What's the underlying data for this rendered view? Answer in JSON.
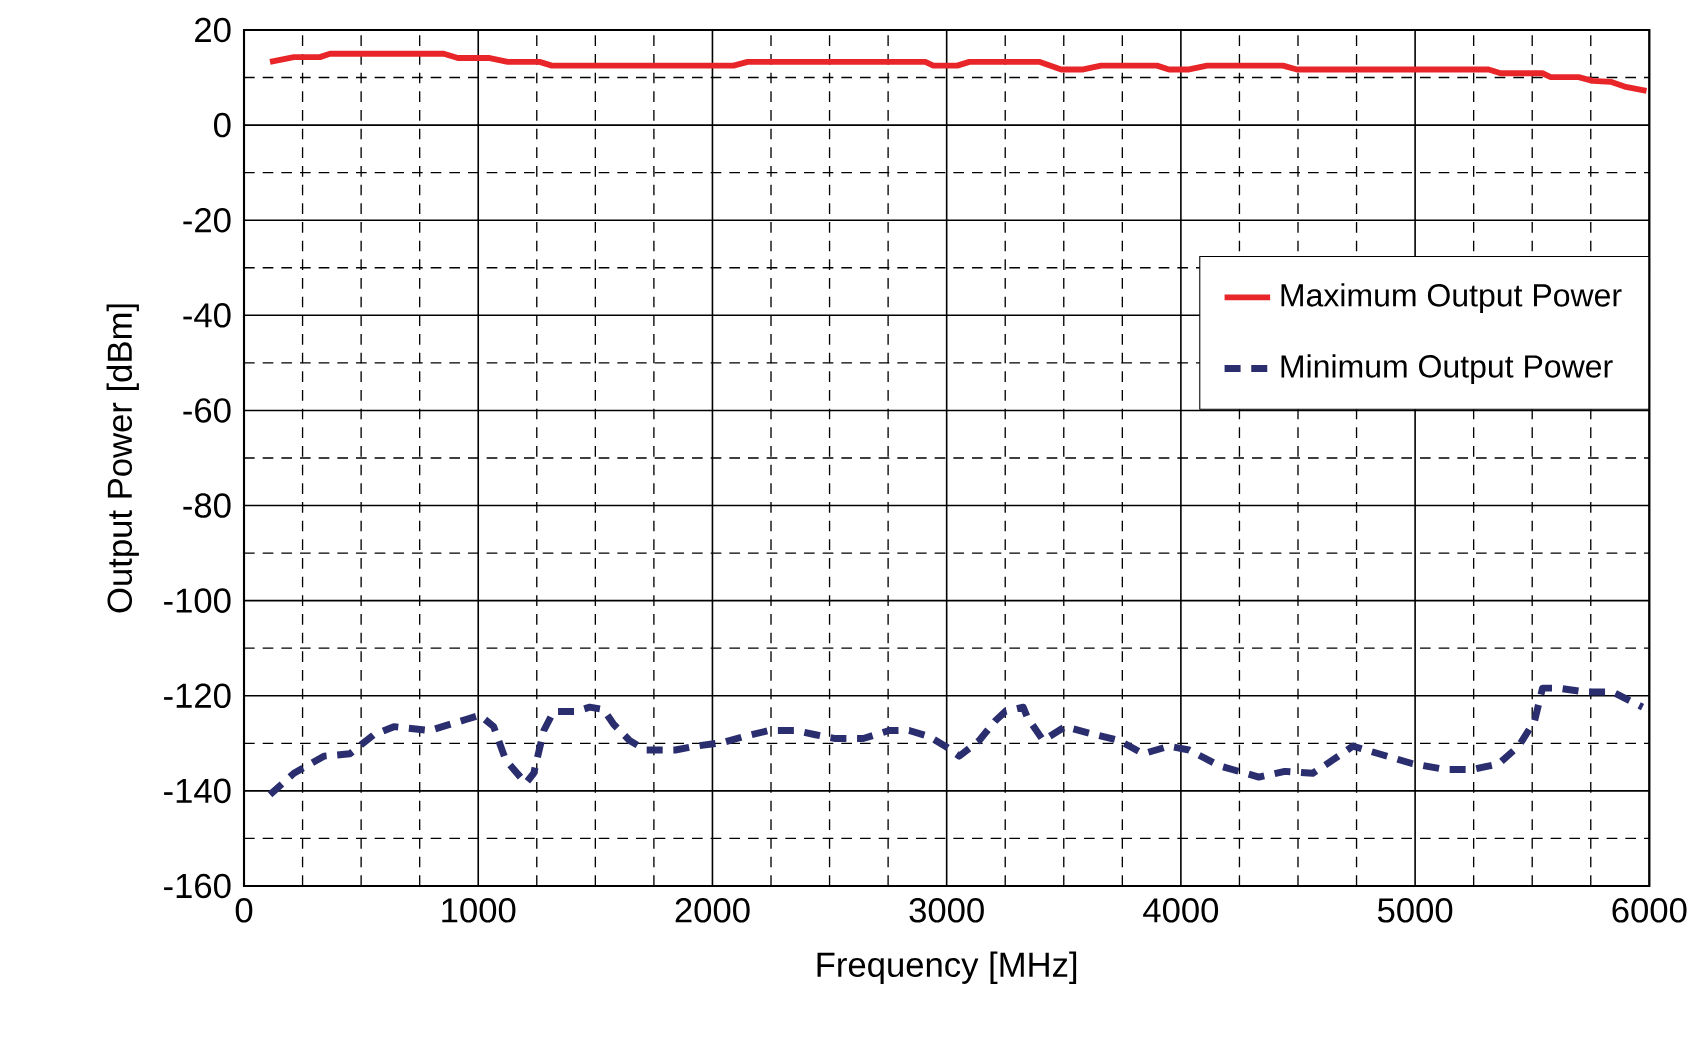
{
  "chart_data": {
    "type": "line",
    "xlabel": "Frequency [MHz]",
    "ylabel": "Output Power [dBm]",
    "xlim": [
      0,
      6000
    ],
    "ylim": [
      -160,
      20
    ],
    "xticks": [
      0,
      1000,
      2000,
      3000,
      4000,
      5000,
      6000
    ],
    "yticks": [
      -160,
      -140,
      -120,
      -100,
      -80,
      -60,
      -40,
      -20,
      0,
      20
    ],
    "grid": true,
    "legend": "right",
    "marker": "none",
    "series": [
      {
        "name": "Maximum Output Power",
        "color": "#e8262a",
        "line_style": "solid",
        "x": [
          111,
          213,
          324,
          367,
          853,
          913,
          1049,
          1126,
          1262,
          1314,
          2090,
          2150,
          2909,
          2943,
          3045,
          3097,
          3395,
          3489,
          3583,
          3659,
          3898,
          3949,
          4035,
          4112,
          4436,
          4495,
          5314,
          5365,
          5544,
          5579,
          5698,
          5758,
          5835,
          5894,
          5988
        ],
        "values": [
          13.3,
          14.3,
          14.3,
          15,
          15,
          14.1,
          14.1,
          13.3,
          13.3,
          12.5,
          12.5,
          13.3,
          13.3,
          12.5,
          12.5,
          13.3,
          13.3,
          11.7,
          11.7,
          12.5,
          12.5,
          11.7,
          11.7,
          12.5,
          12.5,
          11.7,
          11.7,
          10.9,
          10.9,
          10.1,
          10.1,
          9.3,
          9.1,
          8.1,
          7.2
        ]
      },
      {
        "name": "Minimum Output Power",
        "color": "#2b2e6e",
        "line_style": "dashed",
        "x": [
          111,
          213,
          341,
          452,
          554,
          640,
          793,
          947,
          1007,
          1066,
          1117,
          1203,
          1237,
          1280,
          1322,
          1416,
          1476,
          1535,
          1578,
          1646,
          1714,
          1842,
          1928,
          2047,
          2132,
          2243,
          2354,
          2440,
          2525,
          2644,
          2755,
          2840,
          2926,
          2994,
          3054,
          3139,
          3207,
          3250,
          3327,
          3344,
          3412,
          3506,
          3634,
          3736,
          3839,
          3949,
          4035,
          4163,
          4333,
          4444,
          4563,
          4649,
          4734,
          4845,
          4990,
          5127,
          5246,
          5357,
          5442,
          5510,
          5544,
          5613,
          5724,
          5843,
          5971
        ],
        "values": [
          -140.8,
          -136.3,
          -132.7,
          -132.2,
          -128.2,
          -126.5,
          -127.3,
          -125,
          -124.1,
          -126.5,
          -133.5,
          -138.4,
          -136.3,
          -127.3,
          -123.3,
          -123.3,
          -122.4,
          -122.9,
          -126,
          -129.4,
          -131.4,
          -131.4,
          -130.6,
          -129.8,
          -128.6,
          -127.3,
          -127.3,
          -128.2,
          -129,
          -129,
          -127.3,
          -127.3,
          -128.6,
          -130.6,
          -132.7,
          -129.4,
          -125.3,
          -123.3,
          -122.4,
          -124.5,
          -129.4,
          -126.5,
          -128.2,
          -129.4,
          -132.2,
          -130.6,
          -131.4,
          -134.7,
          -137.1,
          -135.9,
          -136.3,
          -133.5,
          -130.6,
          -132.2,
          -134.3,
          -135.5,
          -135.5,
          -134.3,
          -130.6,
          -125.3,
          -118.4,
          -118.4,
          -119.2,
          -119.2,
          -122.4
        ]
      }
    ]
  }
}
